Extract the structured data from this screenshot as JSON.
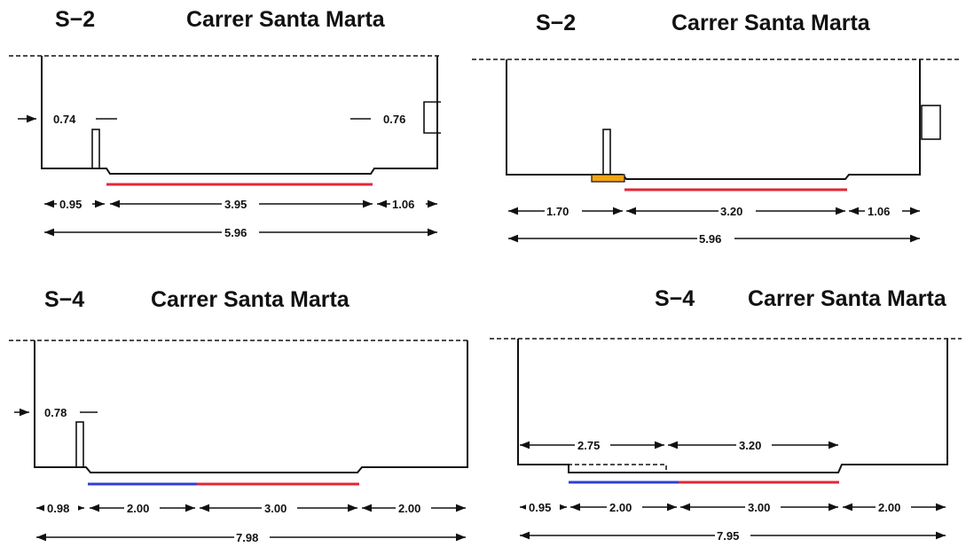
{
  "colors": {
    "red": "#e32636",
    "blue": "#2f3fd6",
    "orange": "#f2a516",
    "line": "#111111"
  },
  "sections": [
    {
      "code": "S−2",
      "street": "Carrer Santa Marta",
      "offset_labels": [
        "0.74",
        "0.76"
      ],
      "widths": [
        "0.95",
        "3.95",
        "1.06"
      ],
      "total": "5.96"
    },
    {
      "code": "S−2",
      "street": "Carrer Santa Marta",
      "widths": [
        "1.70",
        "3.20",
        "1.06"
      ],
      "total": "5.96"
    },
    {
      "code": "S−4",
      "street": "Carrer Santa Marta",
      "offset_labels": [
        "0.78"
      ],
      "widths": [
        "0.98",
        "2.00",
        "3.00",
        "2.00"
      ],
      "total": "7.98"
    },
    {
      "code": "S−4",
      "street": "Carrer Santa Marta",
      "upper_widths": [
        "2.75",
        "3.20"
      ],
      "widths": [
        "0.95",
        "2.00",
        "3.00",
        "2.00"
      ],
      "total": "7.95"
    }
  ]
}
